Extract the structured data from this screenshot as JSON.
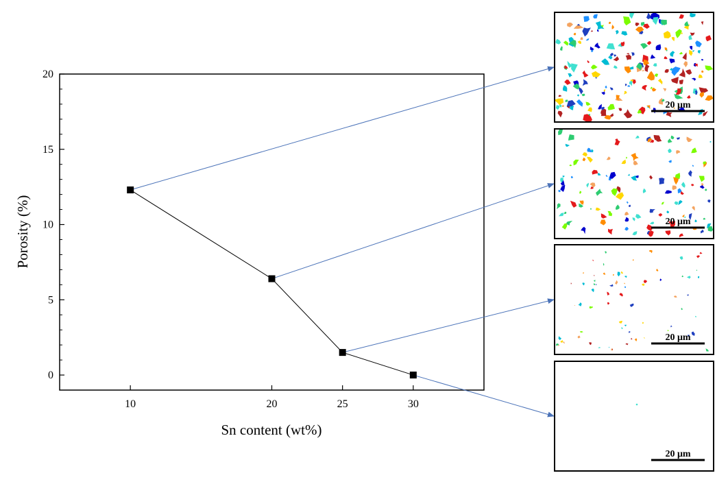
{
  "chart_data": {
    "type": "line",
    "xlabel": "Sn content (wt%)",
    "ylabel": "Porosity (%)",
    "x": [
      10,
      20,
      25,
      30
    ],
    "y": [
      12.3,
      6.4,
      1.5,
      0.0
    ],
    "xlim": [
      5,
      35
    ],
    "ylim": [
      -1,
      20
    ],
    "xticks": [
      "10",
      "20",
      "25",
      "30"
    ],
    "yticks": [
      "0",
      "5",
      "10",
      "15",
      "20"
    ],
    "grid": false,
    "marker": "square",
    "line_color": "#000000",
    "connector_color": "#4a72b8"
  },
  "micrographs": [
    {
      "scale_label": "20 μm",
      "pore_density": "high"
    },
    {
      "scale_label": "20 μm",
      "pore_density": "medium"
    },
    {
      "scale_label": "20 μm",
      "pore_density": "low"
    },
    {
      "scale_label": "20 μm",
      "pore_density": "very low"
    }
  ],
  "pore_palette": [
    "#e41a1c",
    "#1f3fbf",
    "#1e90ff",
    "#00bcd4",
    "#2ecc71",
    "#ffd700",
    "#ff8c00",
    "#7cfc00",
    "#40e0d0",
    "#b22222",
    "#0000cd",
    "#f4a460"
  ]
}
